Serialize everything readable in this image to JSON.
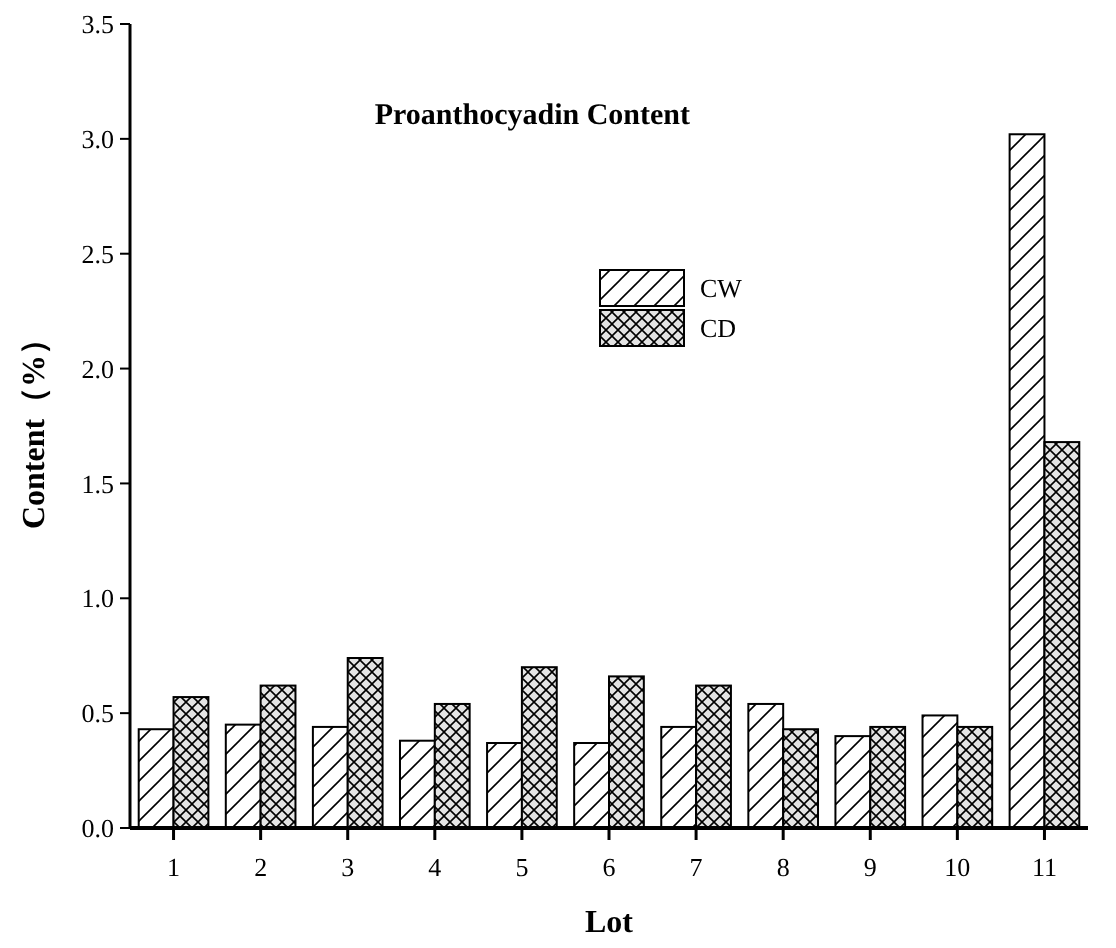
{
  "chart_data": {
    "type": "bar",
    "title": "Proanthocyadin Content",
    "xlabel": "Lot",
    "ylabel": "Content（%）",
    "categories": [
      "1",
      "2",
      "3",
      "4",
      "5",
      "6",
      "7",
      "8",
      "9",
      "10",
      "11"
    ],
    "series": [
      {
        "name": "CW",
        "color": "#000000",
        "values": [
          0.43,
          0.45,
          0.44,
          0.38,
          0.37,
          0.37,
          0.44,
          0.54,
          0.4,
          0.49,
          3.02
        ]
      },
      {
        "name": "CD",
        "color": "#000000",
        "values": [
          0.57,
          0.62,
          0.74,
          0.54,
          0.7,
          0.66,
          0.62,
          0.43,
          0.44,
          0.44,
          1.68
        ]
      }
    ],
    "ylim": [
      0,
      3.5
    ],
    "yticks": [
      {
        "value": 0,
        "label": "0.0"
      },
      {
        "value": 0.5,
        "label": "0.5"
      },
      {
        "value": 1,
        "label": "1.0"
      },
      {
        "value": 1.5,
        "label": "1.5"
      },
      {
        "value": 2,
        "label": "2.0"
      },
      {
        "value": 2.5,
        "label": "2.5"
      },
      {
        "value": 3,
        "label": "3.0"
      },
      {
        "value": 3.5,
        "label": "3.5"
      }
    ],
    "grid": false,
    "legend": "top"
  }
}
